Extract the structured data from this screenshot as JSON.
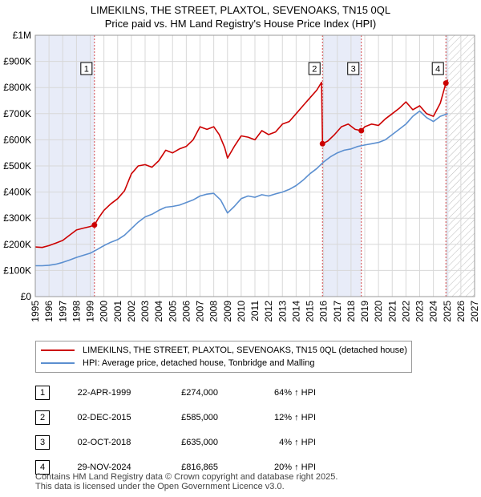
{
  "chart_data": {
    "type": "line",
    "title": "LIMEKILNS, THE STREET, PLAXTOL, SEVENOAKS, TN15 0QL",
    "subtitle": "Price paid vs. HM Land Registry's House Price Index (HPI)",
    "xlim": [
      1995,
      2027
    ],
    "ylim": [
      0,
      1000000
    ],
    "x_ticks": [
      "1995",
      "1996",
      "1997",
      "1998",
      "1999",
      "2000",
      "2001",
      "2002",
      "2003",
      "2004",
      "2005",
      "2006",
      "2007",
      "2008",
      "2009",
      "2010",
      "2011",
      "2012",
      "2013",
      "2014",
      "2015",
      "2016",
      "2017",
      "2018",
      "2019",
      "2020",
      "2021",
      "2022",
      "2023",
      "2024",
      "2025",
      "2026",
      "2027"
    ],
    "y_ticks": [
      {
        "value": 0,
        "label": "£0"
      },
      {
        "value": 100000,
        "label": "£100K"
      },
      {
        "value": 200000,
        "label": "£200K"
      },
      {
        "value": 300000,
        "label": "£300K"
      },
      {
        "value": 400000,
        "label": "£400K"
      },
      {
        "value": 500000,
        "label": "£500K"
      },
      {
        "value": 600000,
        "label": "£600K"
      },
      {
        "value": 700000,
        "label": "£700K"
      },
      {
        "value": 800000,
        "label": "£800K"
      },
      {
        "value": 900000,
        "label": "£900K"
      },
      {
        "value": 1000000,
        "label": "£1M"
      }
    ],
    "shaded_ranges": [
      [
        1995,
        1999.31
      ],
      [
        2015.92,
        2018.75
      ],
      [
        2024.91,
        2025.1
      ]
    ],
    "hatched_range": [
      2025.1,
      2027
    ],
    "series": [
      {
        "name": "LIMEKILNS, THE STREET, PLAXTOL, SEVENOAKS, TN15 0QL (detached house)",
        "color": "#cc0000",
        "x": [
          1995,
          1995.5,
          1996,
          1996.5,
          1997,
          1997.5,
          1998,
          1998.5,
          1999,
          1999.31,
          1999.6,
          2000,
          2000.5,
          2001,
          2001.5,
          2002,
          2002.5,
          2003,
          2003.5,
          2004,
          2004.5,
          2005,
          2005.5,
          2006,
          2006.5,
          2007,
          2007.5,
          2008,
          2008.4,
          2008.8,
          2009,
          2009.5,
          2010,
          2010.5,
          2011,
          2011.5,
          2012,
          2012.5,
          2013,
          2013.5,
          2014,
          2014.5,
          2015,
          2015.5,
          2015.85,
          2015.92,
          2016.3,
          2016.8,
          2017.3,
          2017.8,
          2018.3,
          2018.75,
          2019,
          2019.5,
          2020,
          2020.5,
          2021,
          2021.5,
          2022,
          2022.5,
          2023,
          2023.5,
          2024,
          2024.5,
          2024.91,
          2025.05
        ],
        "values": [
          190000,
          188000,
          195000,
          205000,
          215000,
          235000,
          255000,
          262000,
          268000,
          274000,
          300000,
          330000,
          355000,
          375000,
          405000,
          470000,
          500000,
          505000,
          495000,
          520000,
          560000,
          550000,
          565000,
          575000,
          600000,
          650000,
          640000,
          650000,
          620000,
          570000,
          530000,
          575000,
          615000,
          610000,
          600000,
          635000,
          620000,
          630000,
          660000,
          670000,
          700000,
          730000,
          760000,
          790000,
          820000,
          585000,
          595000,
          620000,
          650000,
          660000,
          640000,
          635000,
          650000,
          660000,
          655000,
          680000,
          700000,
          720000,
          745000,
          715000,
          730000,
          700000,
          690000,
          740000,
          816865,
          830000
        ]
      },
      {
        "name": "HPI: Average price, detached house, Tonbridge and Malling",
        "color": "#5b8fd0",
        "x": [
          1995,
          1995.5,
          1996,
          1996.5,
          1997,
          1997.5,
          1998,
          1998.5,
          1999,
          1999.5,
          2000,
          2000.5,
          2001,
          2001.5,
          2002,
          2002.5,
          2003,
          2003.5,
          2004,
          2004.5,
          2005,
          2005.5,
          2006,
          2006.5,
          2007,
          2007.5,
          2008,
          2008.5,
          2009,
          2009.5,
          2010,
          2010.5,
          2011,
          2011.5,
          2012,
          2012.5,
          2013,
          2013.5,
          2014,
          2014.5,
          2015,
          2015.5,
          2016,
          2016.5,
          2017,
          2017.5,
          2018,
          2018.5,
          2019,
          2019.5,
          2020,
          2020.5,
          2021,
          2021.5,
          2022,
          2022.5,
          2023,
          2023.5,
          2024,
          2024.5,
          2025.05
        ],
        "values": [
          118000,
          118000,
          120000,
          124000,
          131000,
          140000,
          150000,
          158000,
          166000,
          180000,
          195000,
          208000,
          218000,
          235000,
          260000,
          285000,
          305000,
          315000,
          330000,
          342000,
          345000,
          350000,
          360000,
          370000,
          385000,
          392000,
          395000,
          370000,
          320000,
          345000,
          375000,
          385000,
          380000,
          390000,
          385000,
          393000,
          400000,
          410000,
          425000,
          445000,
          470000,
          490000,
          515000,
          535000,
          550000,
          560000,
          565000,
          575000,
          580000,
          585000,
          590000,
          600000,
          620000,
          640000,
          660000,
          690000,
          710000,
          685000,
          670000,
          690000,
          700000
        ]
      }
    ],
    "sales": [
      {
        "label": "1",
        "x": 1999.31,
        "value": 274000
      },
      {
        "label": "2",
        "x": 2015.92,
        "value": 585000
      },
      {
        "label": "3",
        "x": 2018.75,
        "value": 635000
      },
      {
        "label": "4",
        "x": 2024.91,
        "value": 816865
      }
    ]
  },
  "legend": {
    "property_label": "LIMEKILNS, THE STREET, PLAXTOL, SEVENOAKS, TN15 0QL (detached house)",
    "hpi_label": "HPI: Average price, detached house, Tonbridge and Malling",
    "property_color": "#cc0000",
    "hpi_color": "#5b8fd0"
  },
  "transactions": [
    {
      "num": "1",
      "date": "22-APR-1999",
      "price": "£274,000",
      "hpi": "64% ↑ HPI"
    },
    {
      "num": "2",
      "date": "02-DEC-2015",
      "price": "£585,000",
      "hpi": "12% ↑ HPI"
    },
    {
      "num": "3",
      "date": "02-OCT-2018",
      "price": "£635,000",
      "hpi": "4% ↑ HPI"
    },
    {
      "num": "4",
      "date": "29-NOV-2024",
      "price": "£816,865",
      "hpi": "20% ↑ HPI"
    }
  ],
  "footer": {
    "line1": "Contains HM Land Registry data © Crown copyright and database right 2025.",
    "line2": "This data is licensed under the Open Government Licence v3.0."
  }
}
